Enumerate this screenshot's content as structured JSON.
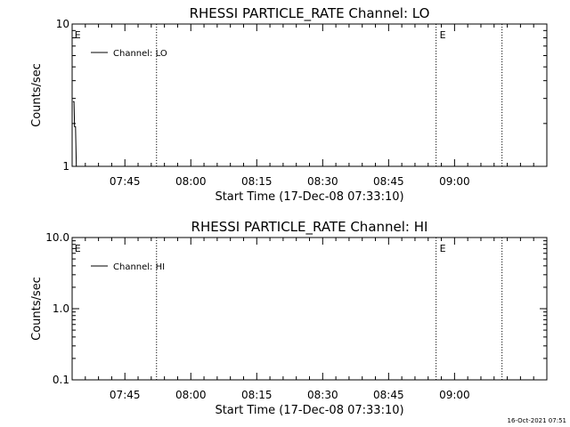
{
  "chart_data": [
    {
      "type": "line",
      "title": "RHESSI PARTICLE_RATE Channel: LO",
      "xlabel": "Start Time (17-Dec-08 07:33:10)",
      "ylabel": "Counts/sec",
      "yscale": "log",
      "ylim": [
        1,
        10
      ],
      "yticks": [
        {
          "value": 1,
          "label": "1"
        },
        {
          "value": 10,
          "label": "10"
        }
      ],
      "xlim_minutes": [
        7.55,
        9.35
      ],
      "xticks": [
        {
          "value": 7.75,
          "label": "07:45"
        },
        {
          "value": 8.0,
          "label": "08:00"
        },
        {
          "value": 8.25,
          "label": "08:15"
        },
        {
          "value": 8.5,
          "label": "08:30"
        },
        {
          "value": 8.75,
          "label": "08:45"
        },
        {
          "value": 9.0,
          "label": "09:00"
        }
      ],
      "legend": {
        "position": "top-left",
        "label": "Channel: LO"
      },
      "series": [
        {
          "name": "Channel: LO",
          "points": [
            [
              7.553,
              2.85
            ],
            [
              7.557,
              2.85
            ],
            [
              7.559,
              1.9
            ],
            [
              7.563,
              1.9
            ],
            [
              7.566,
              1.0
            ]
          ]
        }
      ],
      "vlines": [
        7.87,
        8.93,
        9.18
      ],
      "markers": [
        {
          "x": 7.556,
          "label": "E"
        },
        {
          "x": 8.94,
          "label": "E"
        }
      ],
      "grid": false
    },
    {
      "type": "line",
      "title": "RHESSI PARTICLE_RATE Channel: HI",
      "xlabel": "Start Time (17-Dec-08 07:33:10)",
      "ylabel": "Counts/sec",
      "yscale": "log",
      "ylim": [
        0.1,
        10
      ],
      "yticks": [
        {
          "value": 0.1,
          "label": "0.1"
        },
        {
          "value": 1,
          "label": "1.0"
        },
        {
          "value": 10,
          "label": "10.0"
        }
      ],
      "xlim_minutes": [
        7.55,
        9.35
      ],
      "xticks": [
        {
          "value": 7.75,
          "label": "07:45"
        },
        {
          "value": 8.0,
          "label": "08:00"
        },
        {
          "value": 8.25,
          "label": "08:15"
        },
        {
          "value": 8.5,
          "label": "08:30"
        },
        {
          "value": 8.75,
          "label": "08:45"
        },
        {
          "value": 9.0,
          "label": "09:00"
        }
      ],
      "legend": {
        "position": "top-left",
        "label": "Channel: HI"
      },
      "series": [
        {
          "name": "Channel: HI",
          "points": []
        }
      ],
      "vlines": [
        7.87,
        8.93,
        9.18
      ],
      "markers": [
        {
          "x": 7.556,
          "label": "E"
        },
        {
          "x": 8.94,
          "label": "E"
        }
      ],
      "grid": false
    }
  ],
  "footer": {
    "timestamp": "16-Oct-2021 07:51"
  }
}
